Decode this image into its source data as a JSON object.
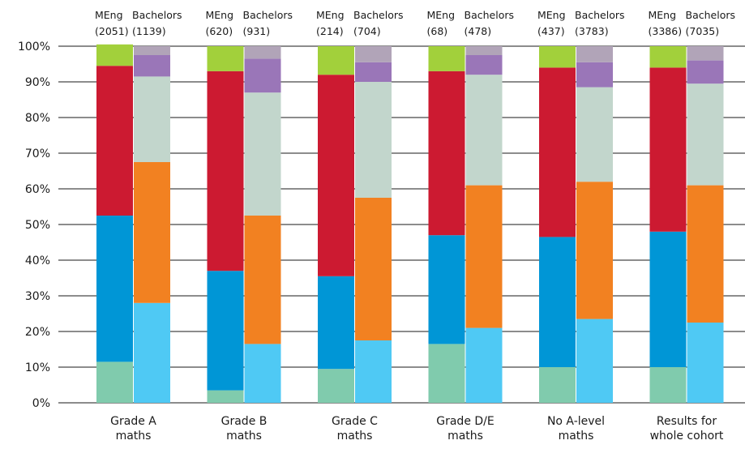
{
  "chart_data": {
    "type": "bar",
    "stacked": true,
    "normalized": true,
    "categories": [
      "Grade A\nmaths",
      "Grade B\nmaths",
      "Grade C\nmaths",
      "Grade D/E\nmaths",
      "No A-level\nmaths",
      "Results for\nwhole cohort"
    ],
    "columns": [
      {
        "name": "MEng",
        "counts": [
          "(2051)",
          "(620)",
          "(214)",
          "(68)",
          "(437)",
          "(3386)"
        ]
      },
      {
        "name": "Bachelors",
        "counts": [
          "(1139)",
          "(931)",
          "(704)",
          "(478)",
          "(3783)",
          "(7035)"
        ]
      }
    ],
    "segment_colors": [
      "#80cbad",
      "#0096d6",
      "#4fc9f4",
      "#f28121",
      "#cc1a31",
      "#c2d6cc",
      "#9a76b8",
      "#a2d03b",
      "#b1a4b8"
    ],
    "meng": [
      [
        11.5,
        41.0,
        42.0,
        6.0
      ],
      [
        3.5,
        33.5,
        56.0,
        7.0
      ],
      [
        9.5,
        26.0,
        56.5,
        8.0
      ],
      [
        16.5,
        30.5,
        46.0,
        7.0
      ],
      [
        10.0,
        36.5,
        47.5,
        6.0
      ],
      [
        10.0,
        38.0,
        46.0,
        6.0
      ]
    ],
    "bachelors": [
      [
        28.0,
        39.5,
        24.0,
        6.0,
        2.5
      ],
      [
        16.5,
        36.0,
        34.5,
        9.5,
        3.5
      ],
      [
        17.5,
        40.0,
        32.5,
        5.5,
        4.5
      ],
      [
        21.0,
        40.0,
        31.0,
        5.5,
        2.5
      ],
      [
        23.5,
        38.5,
        26.5,
        7.0,
        4.5
      ],
      [
        22.5,
        38.5,
        28.5,
        6.5,
        4.0
      ]
    ],
    "yticks": [
      "0%",
      "10%",
      "20%",
      "30%",
      "40%",
      "50%",
      "60%",
      "70%",
      "80%",
      "90%",
      "100%"
    ],
    "ylim": [
      0,
      100
    ],
    "grid": true
  }
}
